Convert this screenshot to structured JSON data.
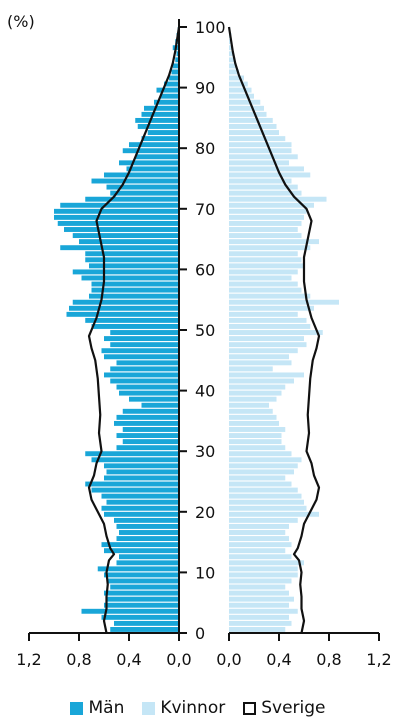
{
  "chart_data": {
    "type": "bar",
    "orientation": "population-pyramid",
    "y_axis_unit": "(%)",
    "ylim": [
      0,
      100
    ],
    "xlim": [
      0,
      1.2
    ],
    "y_ticks": [
      "0",
      "10",
      "20",
      "30",
      "40",
      "50",
      "60",
      "70",
      "80",
      "90",
      "100"
    ],
    "x_ticks_left": [
      "1,2",
      "0,8",
      "0,4",
      "0,0"
    ],
    "x_ticks_right": [
      "0,0",
      "0,4",
      "0,8",
      "1,2"
    ],
    "colors": {
      "men": "#19a6d8",
      "women": "#c5e6f6",
      "sweden": "#111111"
    },
    "legend": [
      {
        "key": "men",
        "label": "Män",
        "style": "filled"
      },
      {
        "key": "women",
        "label": "Kvinnor",
        "style": "filled"
      },
      {
        "key": "sweden",
        "label": "Sverige",
        "style": "outline"
      }
    ],
    "series": [
      {
        "name": "Män",
        "side": "left",
        "values": [
          0.55,
          0.52,
          0.62,
          0.78,
          0.6,
          0.58,
          0.6,
          0.55,
          0.58,
          0.6,
          0.65,
          0.5,
          0.48,
          0.6,
          0.62,
          0.5,
          0.48,
          0.5,
          0.52,
          0.6,
          0.62,
          0.58,
          0.62,
          0.7,
          0.75,
          0.6,
          0.58,
          0.6,
          0.7,
          0.75,
          0.5,
          0.45,
          0.5,
          0.45,
          0.52,
          0.5,
          0.45,
          0.3,
          0.4,
          0.48,
          0.5,
          0.55,
          0.6,
          0.55,
          0.5,
          0.6,
          0.62,
          0.55,
          0.6,
          0.55,
          0.7,
          0.75,
          0.9,
          0.88,
          0.85,
          0.72,
          0.7,
          0.7,
          0.78,
          0.85,
          0.72,
          0.75,
          0.75,
          0.95,
          0.8,
          0.85,
          0.92,
          0.97,
          1.0,
          1.0,
          0.95,
          0.75,
          0.55,
          0.58,
          0.7,
          0.6,
          0.42,
          0.48,
          0.35,
          0.45,
          0.4,
          0.3,
          0.25,
          0.33,
          0.35,
          0.3,
          0.28,
          0.2,
          0.15,
          0.18,
          0.12,
          0.08,
          0.06,
          0.05,
          0.03,
          0.02,
          0.05,
          0.03,
          0.02,
          0.01,
          0.0
        ]
      },
      {
        "name": "Kvinnor",
        "side": "right",
        "values": [
          0.45,
          0.5,
          0.48,
          0.55,
          0.48,
          0.52,
          0.48,
          0.45,
          0.5,
          0.55,
          0.55,
          0.6,
          0.5,
          0.45,
          0.5,
          0.48,
          0.45,
          0.48,
          0.55,
          0.72,
          0.62,
          0.6,
          0.58,
          0.55,
          0.5,
          0.45,
          0.52,
          0.55,
          0.58,
          0.5,
          0.45,
          0.42,
          0.42,
          0.45,
          0.4,
          0.38,
          0.35,
          0.32,
          0.38,
          0.42,
          0.45,
          0.52,
          0.6,
          0.35,
          0.5,
          0.48,
          0.55,
          0.62,
          0.6,
          0.75,
          0.65,
          0.62,
          0.55,
          0.68,
          0.88,
          0.65,
          0.58,
          0.55,
          0.5,
          0.55,
          0.6,
          0.58,
          0.55,
          0.65,
          0.72,
          0.58,
          0.55,
          0.58,
          0.6,
          0.62,
          0.68,
          0.78,
          0.58,
          0.55,
          0.5,
          0.65,
          0.6,
          0.48,
          0.55,
          0.5,
          0.5,
          0.45,
          0.4,
          0.38,
          0.35,
          0.3,
          0.28,
          0.25,
          0.2,
          0.18,
          0.15,
          0.12,
          0.08,
          0.06,
          0.05,
          0.04,
          0.03,
          0.02,
          0.02,
          0.01,
          0.0
        ]
      },
      {
        "name": "Sverige",
        "side": "both",
        "points": [
          [
            0,
            0.58
          ],
          [
            2,
            0.6
          ],
          [
            4,
            0.58
          ],
          [
            6,
            0.58
          ],
          [
            8,
            0.57
          ],
          [
            10,
            0.58
          ],
          [
            12,
            0.56
          ],
          [
            13,
            0.52
          ],
          [
            14,
            0.55
          ],
          [
            16,
            0.58
          ],
          [
            18,
            0.6
          ],
          [
            20,
            0.65
          ],
          [
            22,
            0.7
          ],
          [
            24,
            0.72
          ],
          [
            26,
            0.68
          ],
          [
            28,
            0.66
          ],
          [
            30,
            0.62
          ],
          [
            33,
            0.64
          ],
          [
            36,
            0.63
          ],
          [
            39,
            0.64
          ],
          [
            42,
            0.65
          ],
          [
            45,
            0.67
          ],
          [
            47,
            0.7
          ],
          [
            49,
            0.72
          ],
          [
            50,
            0.7
          ],
          [
            52,
            0.66
          ],
          [
            55,
            0.62
          ],
          [
            58,
            0.6
          ],
          [
            60,
            0.6
          ],
          [
            62,
            0.6
          ],
          [
            64,
            0.62
          ],
          [
            66,
            0.64
          ],
          [
            68,
            0.66
          ],
          [
            70,
            0.62
          ],
          [
            72,
            0.52
          ],
          [
            74,
            0.45
          ],
          [
            76,
            0.4
          ],
          [
            78,
            0.36
          ],
          [
            80,
            0.32
          ],
          [
            82,
            0.28
          ],
          [
            84,
            0.24
          ],
          [
            86,
            0.2
          ],
          [
            88,
            0.16
          ],
          [
            90,
            0.12
          ],
          [
            92,
            0.08
          ],
          [
            94,
            0.05
          ],
          [
            96,
            0.03
          ],
          [
            98,
            0.015
          ],
          [
            100,
            0.0
          ]
        ]
      }
    ]
  }
}
